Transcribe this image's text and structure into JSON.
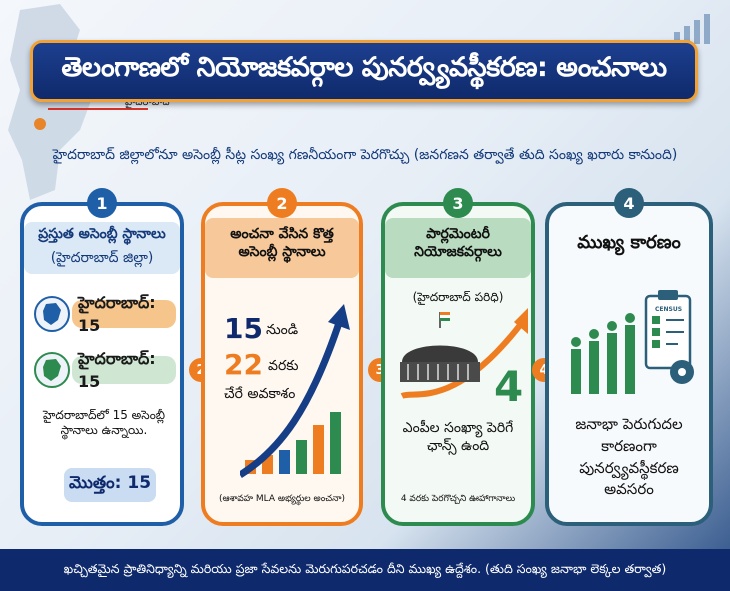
{
  "title": "తెలంగాణలో నియోజకవర్గాల పునర్వ్యవస్థీకరణ: అంచనాలు",
  "map_label": "హైదరాబాద్",
  "subtitle": "హైదరాబాద్ జిల్లాలోనూ అసెంబ్లీ సీట్ల సంఖ్య గణనీయంగా పెరగొచ్చు (జనగణన తర్వాతే తుది సంఖ్య ఖరారు కానుంది)",
  "cards": [
    {
      "number": "1",
      "title": "ప్రస్తుత అసెంబ్లీ స్థానాలు",
      "subtitle": "(హైదరాబాద్ జిల్లా)",
      "pills": [
        {
          "label": "హైదరాబాద్: 15"
        },
        {
          "label": "హైదరాబాద్: 15"
        }
      ],
      "note": "హైదరాబాద్‌లో 15 అసెంబ్లీ స్థానాలు ఉన్నాయి.",
      "total": "మొత్తం: 15"
    },
    {
      "number": "2",
      "title": "అంచనా వేసిన కొత్త అసెంబ్లీ స్థానాలు",
      "from_num": "15",
      "from_word": "నుండి",
      "to_num": "22",
      "to_word": "వరకు",
      "note": "చేరే అవకాశం",
      "footnote": "(ఆశావహ MLA అభ్యర్థుల అంచనా)"
    },
    {
      "number": "3",
      "title": "పార్లమెంటరీ నియోజకవర్గాలు",
      "subtitle": "(హైదరాబాద్ పరిధి)",
      "big_num": "4",
      "note": "ఎంపీల సంఖ్యా పెరిగే ఛాన్స్ ఉంది",
      "footnote": "4 వరకు పెరగొచ్చని ఊహాగానాలు"
    },
    {
      "number": "4",
      "title": "ముఖ్య కారణం",
      "census_label": "CENSUS",
      "note": "జనాభా పెరుగుదల కారణంగా పునర్వ్యవస్థీకరణ అవసరం"
    }
  ],
  "side_badges": [
    "2",
    "3",
    "4"
  ],
  "footer": "ఖచ్చితమైన ప్రాతినిధ్యాన్ని మరియు ప్రజా సేవలను మెరుగుపరచడం దీని ముఖ్య ఉద్దేశం. (తుది సంఖ్య జనాభా లెక్కల తర్వాత)",
  "colors": {
    "blue": "#1f5fa8",
    "orange": "#ee7d22",
    "green": "#2e8b4f",
    "teal": "#2b5f7a",
    "navy": "#0f2a6c"
  }
}
